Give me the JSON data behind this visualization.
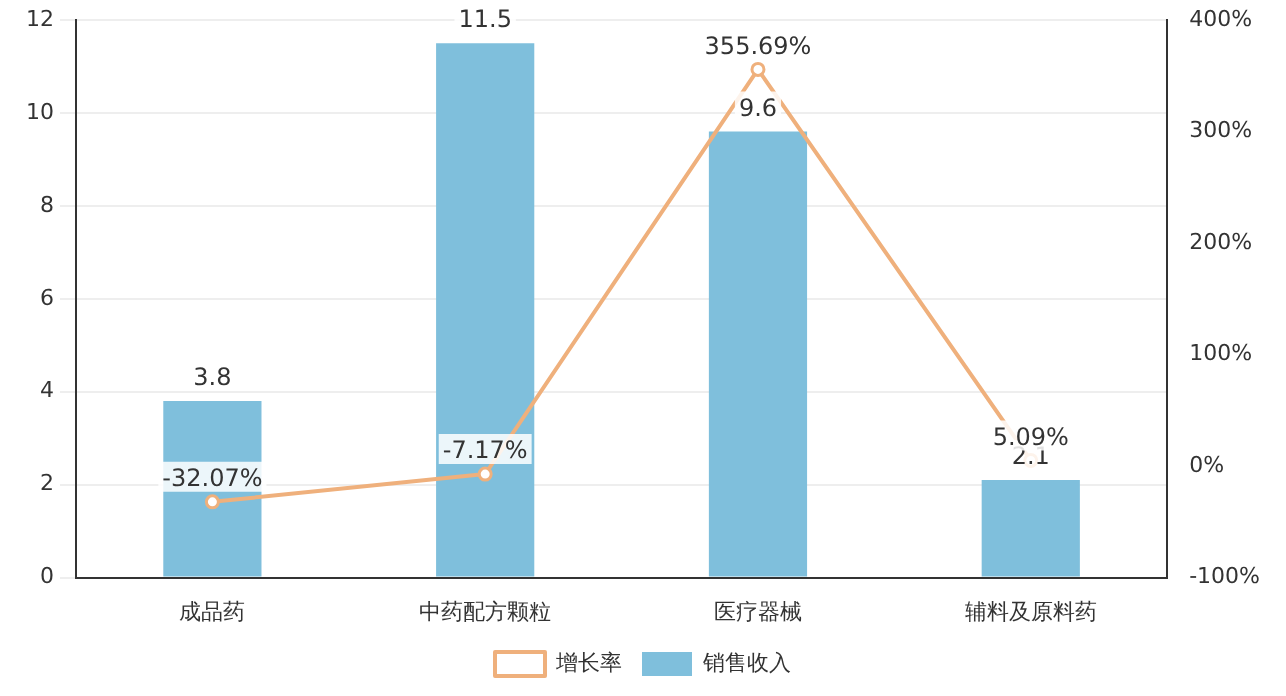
{
  "chart_data": {
    "type": "bar",
    "categories": [
      "成品药",
      "中药配方颗粒",
      "医疗器械",
      "辅料及原料药"
    ],
    "series": [
      {
        "name": "销售收入",
        "color": "#7fbfdc",
        "values": [
          3.8,
          11.5,
          9.6,
          2.1
        ],
        "value_labels": [
          "3.8",
          "11.5",
          "9.6",
          "2.1"
        ]
      },
      {
        "name": "增长率",
        "type": "line",
        "axis": "y2",
        "color": "#efb07c",
        "values": [
          -32.07,
          -7.17,
          355.69,
          5.09
        ],
        "value_labels": [
          "-32.07%",
          "-7.17%",
          "355.69%",
          "5.09%"
        ],
        "marker": "circle"
      }
    ],
    "ylim": [
      0,
      12
    ],
    "yticks": [
      0,
      2,
      4,
      6,
      8,
      10,
      12
    ],
    "y2lim": [
      -100,
      400
    ],
    "y2ticks": [
      {
        "value": -100,
        "label": "-100%"
      },
      {
        "value": 0,
        "label": "0%"
      },
      {
        "value": 100,
        "label": "100%"
      },
      {
        "value": 200,
        "label": "200%"
      },
      {
        "value": 300,
        "label": "300%"
      },
      {
        "value": 400,
        "label": "400%"
      }
    ],
    "grid": "y",
    "legend": "bottom"
  }
}
